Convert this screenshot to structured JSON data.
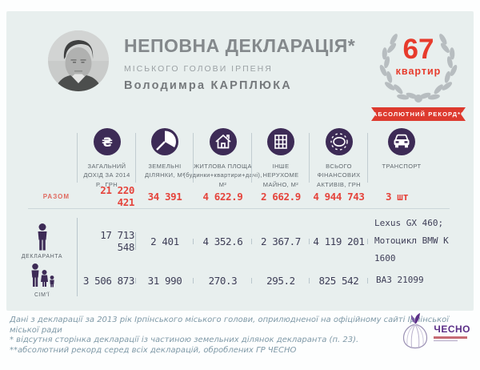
{
  "header": {
    "title": "НЕПОВНА ДЕКЛАРАЦІЯ*",
    "subtitle": "МІСЬКОГО ГОЛОВИ ІРПЕНЯ",
    "name": "Володимра КАРПЛЮКА"
  },
  "badge": {
    "number": "67",
    "unit": "квартир",
    "ribbon": "АБСОЛЮТНИЙ РЕКОРД**"
  },
  "table": {
    "columns": [
      {
        "icon": "hryvnia-income-icon",
        "label": "ЗАГАЛЬНИЙ ДОХІД ЗА 2014 Р., ГРН"
      },
      {
        "icon": "land-plots-icon",
        "label": "ЗЕМЕЛЬНІ ДІЛЯНКИ, М²"
      },
      {
        "icon": "house-icon",
        "label": "ЖИТЛОВА ПЛОЩА (будинки+квартири+дачі), М²"
      },
      {
        "icon": "building-icon",
        "label": "ІНШЕ НЕРУХОМЕ МАЙНО, М²"
      },
      {
        "icon": "coin-icon",
        "label": "ВСЬОГО ФІНАНСОВИХ АКТИВІВ, ГРН"
      },
      {
        "icon": "car-icon",
        "label": "ТРАНСПОРТ"
      }
    ],
    "rows": {
      "total": {
        "label": "РАЗОМ",
        "income": "21 220 421",
        "land": "34 391",
        "living": "4 622.9",
        "other": "2 662.9",
        "assets": "4 944 743",
        "transport": "3 шт"
      },
      "declarant": {
        "label": "ДЕКЛАРАНТА",
        "income": "17 713 548",
        "land": "2 401",
        "living": "4 352.6",
        "other": "2 367.7",
        "assets": "4 119 201",
        "transport1": "Lexus GX 460;",
        "transport2": "Мотоцикл BMW K 1600"
      },
      "family": {
        "label": "СІМ'Ї",
        "income": "3 506 873",
        "land": "31 990",
        "living": "270.3",
        "other": "295.2",
        "assets": "825 542",
        "transport": "ВАЗ 21099"
      }
    }
  },
  "footer": {
    "line1": "Дані з декларації за 2013 рік Ірпінського міського голови, оприлюдненої на офіційному сайті Ірпінської міської ради",
    "line2": "* відсутня сторінка декларації із частиною земельних ділянок декларанта (п. 23).",
    "line3": "**абсолютний рекорд серед всіх декларацій, оброблених ГР ЧЕСНО",
    "logo": "ЧЕСНО"
  },
  "colors": {
    "accent_red": "#e73b2c",
    "icon_purple": "#3d2b56",
    "panel_bg": "#e8efee",
    "wreath_gray": "#b7bdc0",
    "logo_purple": "#5b2f87"
  },
  "chart_data": {
    "type": "table",
    "title": "НЕПОВНА ДЕКЛАРАЦІЯ міського голови Ірпеня Володимра Карплюка",
    "columns": [
      "ЗАГАЛЬНИЙ ДОХІД ЗА 2014 Р., ГРН",
      "ЗЕМЕЛЬНІ ДІЛЯНКИ, М²",
      "ЖИТЛОВА ПЛОЩА (будинки+квартири+дачі), М²",
      "ІНШЕ НЕРУХОМЕ МАЙНО, М²",
      "ВСЬОГО ФІНАНСОВИХ АКТИВІВ, ГРН",
      "ТРАНСПОРТ"
    ],
    "rows": [
      {
        "name": "РАЗОМ",
        "values": [
          21220421,
          34391,
          4622.9,
          2662.9,
          4944743,
          "3 шт"
        ]
      },
      {
        "name": "ДЕКЛАРАНТА",
        "values": [
          17713548,
          2401,
          4352.6,
          2367.7,
          4119201,
          "Lexus GX 460; Мотоцикл BMW K 1600"
        ]
      },
      {
        "name": "СІМ'Ї",
        "values": [
          3506873,
          31990,
          270.3,
          295.2,
          825542,
          "ВАЗ 21099"
        ]
      }
    ],
    "annotations": [
      "67 квартир",
      "АБСОЛЮТНИЙ РЕКОРД**"
    ]
  }
}
